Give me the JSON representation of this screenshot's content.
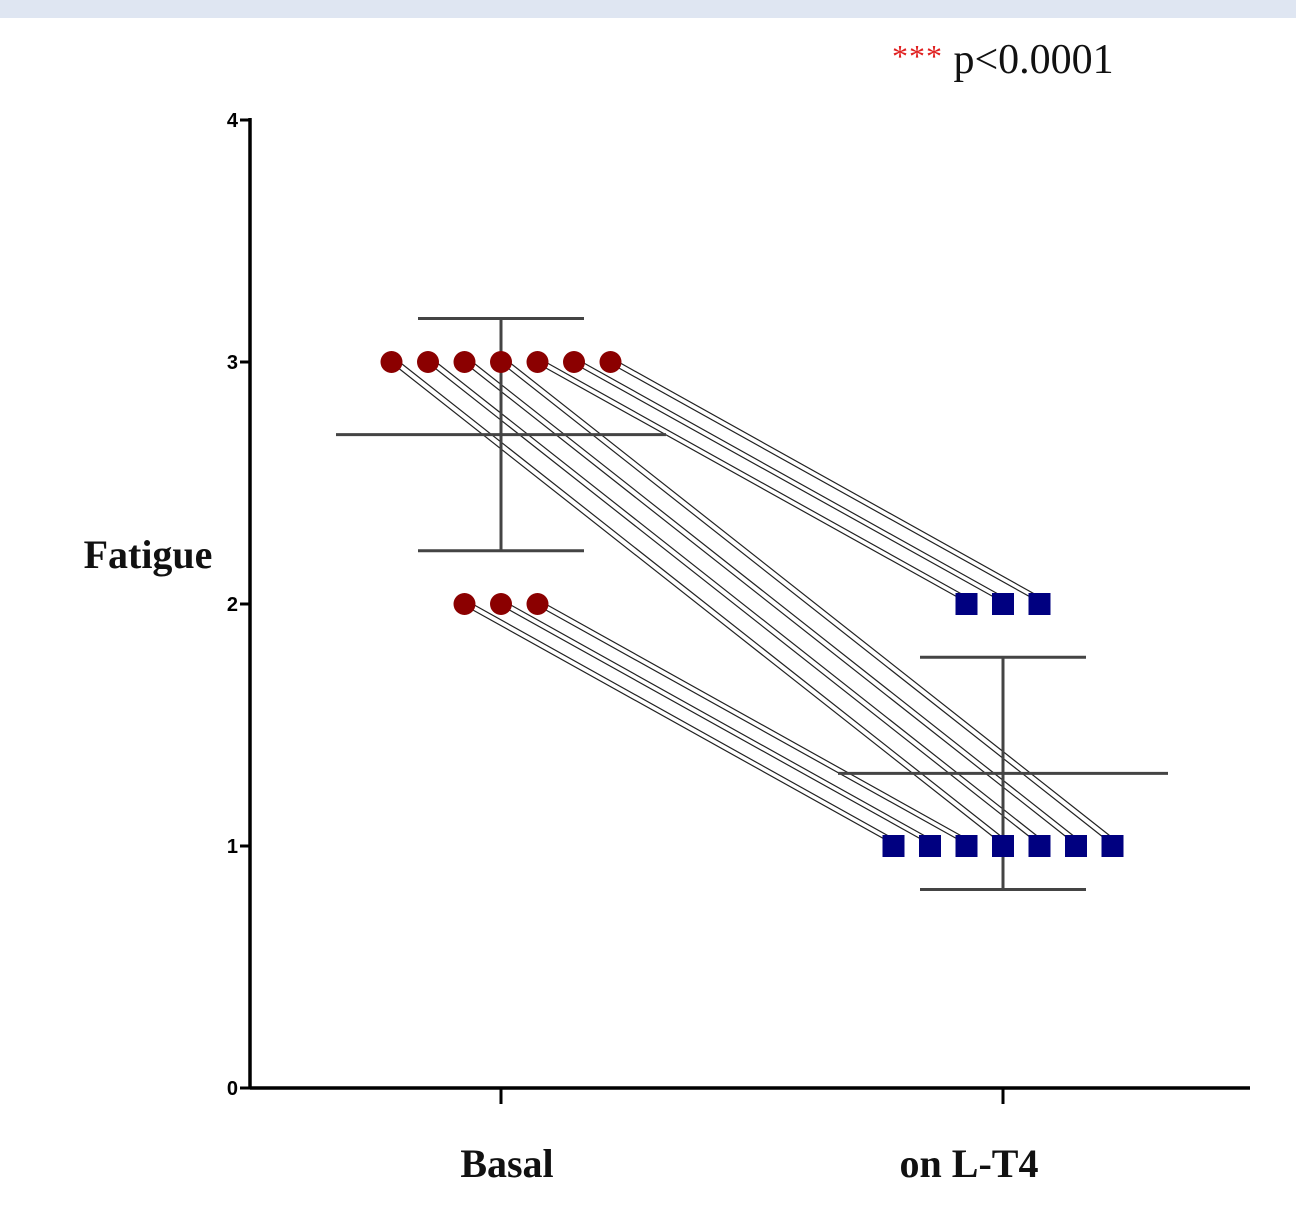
{
  "annotation": {
    "stars": "***",
    "text": "p<0.0001"
  },
  "chart_data": {
    "type": "scatter",
    "subtype": "paired before-after dot plot with mean ± SD",
    "ylabel": "Fatigue",
    "xlabel": "",
    "categories": [
      "Basal",
      "on L-T4"
    ],
    "ylim": [
      0,
      4
    ],
    "yticks": [
      "0",
      "1",
      "2",
      "3",
      "4"
    ],
    "grid": false,
    "series": [
      {
        "category": "Basal",
        "marker": "circle",
        "color": "#8b0000",
        "values": [
          3,
          3,
          3,
          3,
          3,
          3,
          3,
          2,
          2,
          2
        ]
      },
      {
        "category": "on L-T4",
        "marker": "square",
        "color": "#000080",
        "values": [
          1,
          1,
          1,
          1,
          1,
          1,
          1,
          2,
          2,
          2
        ]
      }
    ],
    "pairs": [
      [
        3,
        1
      ],
      [
        3,
        1
      ],
      [
        3,
        1
      ],
      [
        3,
        1
      ],
      [
        3,
        2
      ],
      [
        3,
        2
      ],
      [
        3,
        2
      ],
      [
        2,
        1
      ],
      [
        2,
        1
      ],
      [
        2,
        1
      ]
    ],
    "summary": [
      {
        "category": "Basal",
        "mean": 2.7,
        "sd_low": 2.22,
        "sd_high": 3.18
      },
      {
        "category": "on L-T4",
        "mean": 1.3,
        "sd_low": 0.82,
        "sd_high": 1.78
      }
    ],
    "colors": {
      "basal": "#8b0000",
      "treated": "#000080",
      "line": "#222222",
      "stats": "#444444",
      "stars": "#e02020"
    }
  }
}
